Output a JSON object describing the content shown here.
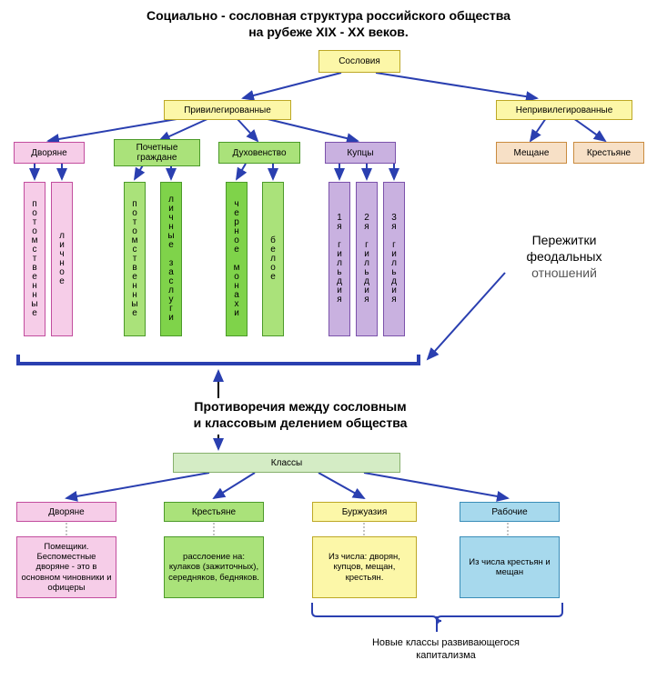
{
  "title": {
    "line1": "Социально - сословная структура российского общества",
    "line2": "на рубеже XIX - XX веков."
  },
  "colors": {
    "yellow_fill": "#fcf7a8",
    "yellow_border": "#bda826",
    "pink_fill": "#f6cde8",
    "pink_border": "#c24d9e",
    "green_fill": "#aae27a",
    "green_border": "#4c9a2a",
    "green_dark_fill": "#7fd34a",
    "purple_fill": "#c9b1e0",
    "purple_border": "#7b52ab",
    "orange_fill": "#f7e0c6",
    "orange_border": "#c98b3f",
    "cyan_fill": "#a7d9ed",
    "cyan_border": "#3a8db8",
    "lightgreen_fill": "#d4ecc5",
    "lightgreen_border": "#86b06c",
    "arrow_blue": "#2a3fb0",
    "bracket_blue": "#2a3fb0",
    "text_gray": "#555555"
  },
  "estates_label": "Сословия",
  "privileged_label": "Привилегированные",
  "unprivileged_label": "Непривилегированные",
  "estate_groups": {
    "dvoryane": "Дворяне",
    "pochetnye": "Почетные граждане",
    "duhovenstvo": "Духовенство",
    "kupcy": "Купцы",
    "meshchane": "Мещане",
    "krestyane": "Крестьяне"
  },
  "sub": {
    "dvoryane_1": "потомственные",
    "dvoryane_2": "личное",
    "pochetnye_1": "потомственные",
    "pochetnye_2": "личные заслуги",
    "duhov_1": "черное монахи",
    "duhov_2": "белое",
    "kupcy_1": "1я гильдия",
    "kupcy_2": "2я гильдия",
    "kupcy_3": "3я гильдия"
  },
  "side_text": {
    "l1": "Пережитки",
    "l2": "феодальных",
    "l3": "отношений"
  },
  "mid_text": {
    "l1": "Противоречия между сословным",
    "l2": "и классовым делением общества"
  },
  "classes_label": "Классы",
  "classes": {
    "dvoryane": "Дворяне",
    "krestyane": "Крестьяне",
    "burzhuazia": "Буржуазия",
    "rabochie": "Рабочие"
  },
  "class_desc": {
    "dvoryane": "Помещики. Беспоместные дворяне - это в основном чиновники и офицеры",
    "krestyane": "расслоение на: кулаков (зажиточных), середняков, бедняков.",
    "burzhuazia": "Из числа: дворян, купцов, мещан, крестьян.",
    "rabochie": "Из числа крестьян и мещан"
  },
  "bottom_text": {
    "l1": "Новые классы развивающегося",
    "l2": "капитализма"
  },
  "layout": {
    "title_fontsize": 14,
    "box_fontsize": 10,
    "vertical_box_height": 170,
    "vertical_box_width": 24
  }
}
